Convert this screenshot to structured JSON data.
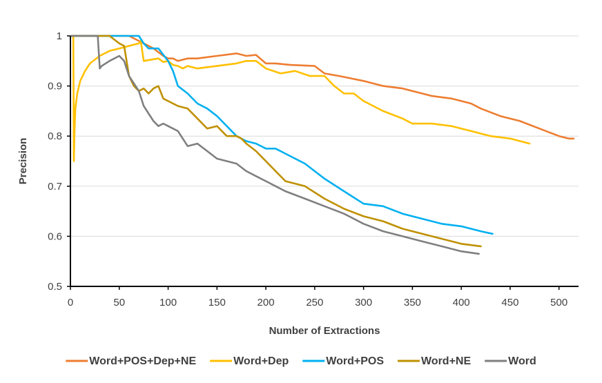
{
  "chart_data": {
    "type": "line",
    "title": "",
    "xlabel": "Number of Extractions",
    "ylabel": "Precision",
    "xlim": [
      0,
      520
    ],
    "ylim": [
      0.5,
      1.0
    ],
    "x_ticks": [
      0,
      50,
      100,
      150,
      200,
      250,
      300,
      350,
      400,
      450,
      500
    ],
    "y_ticks": [
      0.5,
      0.6,
      0.7,
      0.8,
      0.9,
      1.0
    ],
    "x_tick_labels": [
      "0",
      "50",
      "100",
      "150",
      "200",
      "250",
      "300",
      "350",
      "400",
      "450",
      "500"
    ],
    "y_tick_labels": [
      "0.5",
      "0.6",
      "0.7",
      "0.8",
      "0.9",
      "1"
    ],
    "grid": "horizontal",
    "legend_position": "bottom",
    "series": [
      {
        "name": "Word+POS+Dep+NE",
        "color": "#ED7D31",
        "x": [
          1,
          5,
          20,
          40,
          60,
          75,
          85,
          95,
          100,
          105,
          110,
          120,
          130,
          150,
          170,
          180,
          190,
          200,
          210,
          225,
          250,
          260,
          275,
          300,
          320,
          340,
          350,
          370,
          390,
          410,
          420,
          440,
          460,
          480,
          500,
          510,
          515
        ],
        "y": [
          1.0,
          1.0,
          1.0,
          1.0,
          1.0,
          0.985,
          0.975,
          0.96,
          0.955,
          0.955,
          0.95,
          0.955,
          0.955,
          0.96,
          0.965,
          0.96,
          0.962,
          0.945,
          0.945,
          0.942,
          0.94,
          0.925,
          0.92,
          0.91,
          0.9,
          0.895,
          0.89,
          0.88,
          0.875,
          0.865,
          0.855,
          0.84,
          0.83,
          0.815,
          0.8,
          0.795,
          0.795
        ]
      },
      {
        "name": "Word+Dep",
        "color": "#FFC000",
        "x": [
          1,
          2,
          3,
          3.5,
          4,
          5,
          7,
          10,
          15,
          20,
          30,
          40,
          50,
          60,
          70,
          72,
          75,
          90,
          95,
          100,
          105,
          110,
          115,
          120,
          130,
          150,
          170,
          180,
          190,
          200,
          215,
          230,
          245,
          260,
          270,
          280,
          290,
          300,
          320,
          340,
          350,
          370,
          390,
          410,
          430,
          450,
          470
        ],
        "y": [
          1.0,
          1.0,
          1.0,
          0.75,
          0.8,
          0.855,
          0.885,
          0.91,
          0.93,
          0.945,
          0.96,
          0.97,
          0.975,
          0.98,
          0.985,
          0.99,
          0.95,
          0.955,
          0.948,
          0.95,
          0.942,
          0.94,
          0.935,
          0.94,
          0.935,
          0.94,
          0.945,
          0.95,
          0.95,
          0.935,
          0.925,
          0.93,
          0.92,
          0.92,
          0.9,
          0.885,
          0.885,
          0.87,
          0.85,
          0.835,
          0.825,
          0.825,
          0.82,
          0.81,
          0.8,
          0.795,
          0.785
        ]
      },
      {
        "name": "Word+POS",
        "color": "#00B0F0",
        "x": [
          1,
          20,
          40,
          70,
          75,
          80,
          90,
          100,
          105,
          110,
          120,
          130,
          140,
          150,
          160,
          170,
          180,
          190,
          200,
          210,
          220,
          240,
          260,
          280,
          300,
          320,
          340,
          360,
          380,
          400,
          420,
          432
        ],
        "y": [
          1.0,
          1.0,
          1.0,
          1.0,
          0.985,
          0.975,
          0.975,
          0.95,
          0.93,
          0.9,
          0.885,
          0.865,
          0.855,
          0.84,
          0.82,
          0.8,
          0.79,
          0.785,
          0.775,
          0.775,
          0.765,
          0.745,
          0.715,
          0.69,
          0.665,
          0.66,
          0.645,
          0.635,
          0.625,
          0.62,
          0.61,
          0.605
        ]
      },
      {
        "name": "Word+NE",
        "color": "#BF9000",
        "x": [
          1,
          20,
          40,
          50,
          55,
          60,
          65,
          70,
          75,
          80,
          85,
          90,
          95,
          100,
          105,
          110,
          120,
          130,
          140,
          150,
          160,
          170,
          175,
          180,
          190,
          200,
          210,
          220,
          240,
          260,
          280,
          300,
          320,
          340,
          360,
          380,
          400,
          420
        ],
        "y": [
          1.0,
          1.0,
          1.0,
          0.985,
          0.98,
          0.92,
          0.9,
          0.89,
          0.895,
          0.885,
          0.895,
          0.9,
          0.875,
          0.87,
          0.865,
          0.86,
          0.855,
          0.835,
          0.815,
          0.82,
          0.8,
          0.8,
          0.795,
          0.785,
          0.77,
          0.75,
          0.73,
          0.71,
          0.7,
          0.675,
          0.655,
          0.64,
          0.63,
          0.615,
          0.605,
          0.595,
          0.585,
          0.58
        ]
      },
      {
        "name": "Word",
        "color": "#7F7F7F",
        "x": [
          1,
          10,
          20,
          28,
          30,
          32,
          40,
          50,
          55,
          60,
          70,
          75,
          80,
          85,
          90,
          95,
          100,
          110,
          120,
          130,
          140,
          150,
          160,
          170,
          180,
          190,
          200,
          210,
          220,
          240,
          260,
          280,
          300,
          320,
          340,
          360,
          380,
          400,
          418
        ],
        "y": [
          1.0,
          1.0,
          1.0,
          1.0,
          0.935,
          0.94,
          0.95,
          0.96,
          0.95,
          0.92,
          0.89,
          0.86,
          0.845,
          0.83,
          0.82,
          0.825,
          0.82,
          0.81,
          0.78,
          0.785,
          0.77,
          0.755,
          0.75,
          0.745,
          0.73,
          0.72,
          0.71,
          0.7,
          0.69,
          0.675,
          0.66,
          0.645,
          0.625,
          0.61,
          0.6,
          0.59,
          0.58,
          0.57,
          0.565
        ]
      }
    ]
  }
}
